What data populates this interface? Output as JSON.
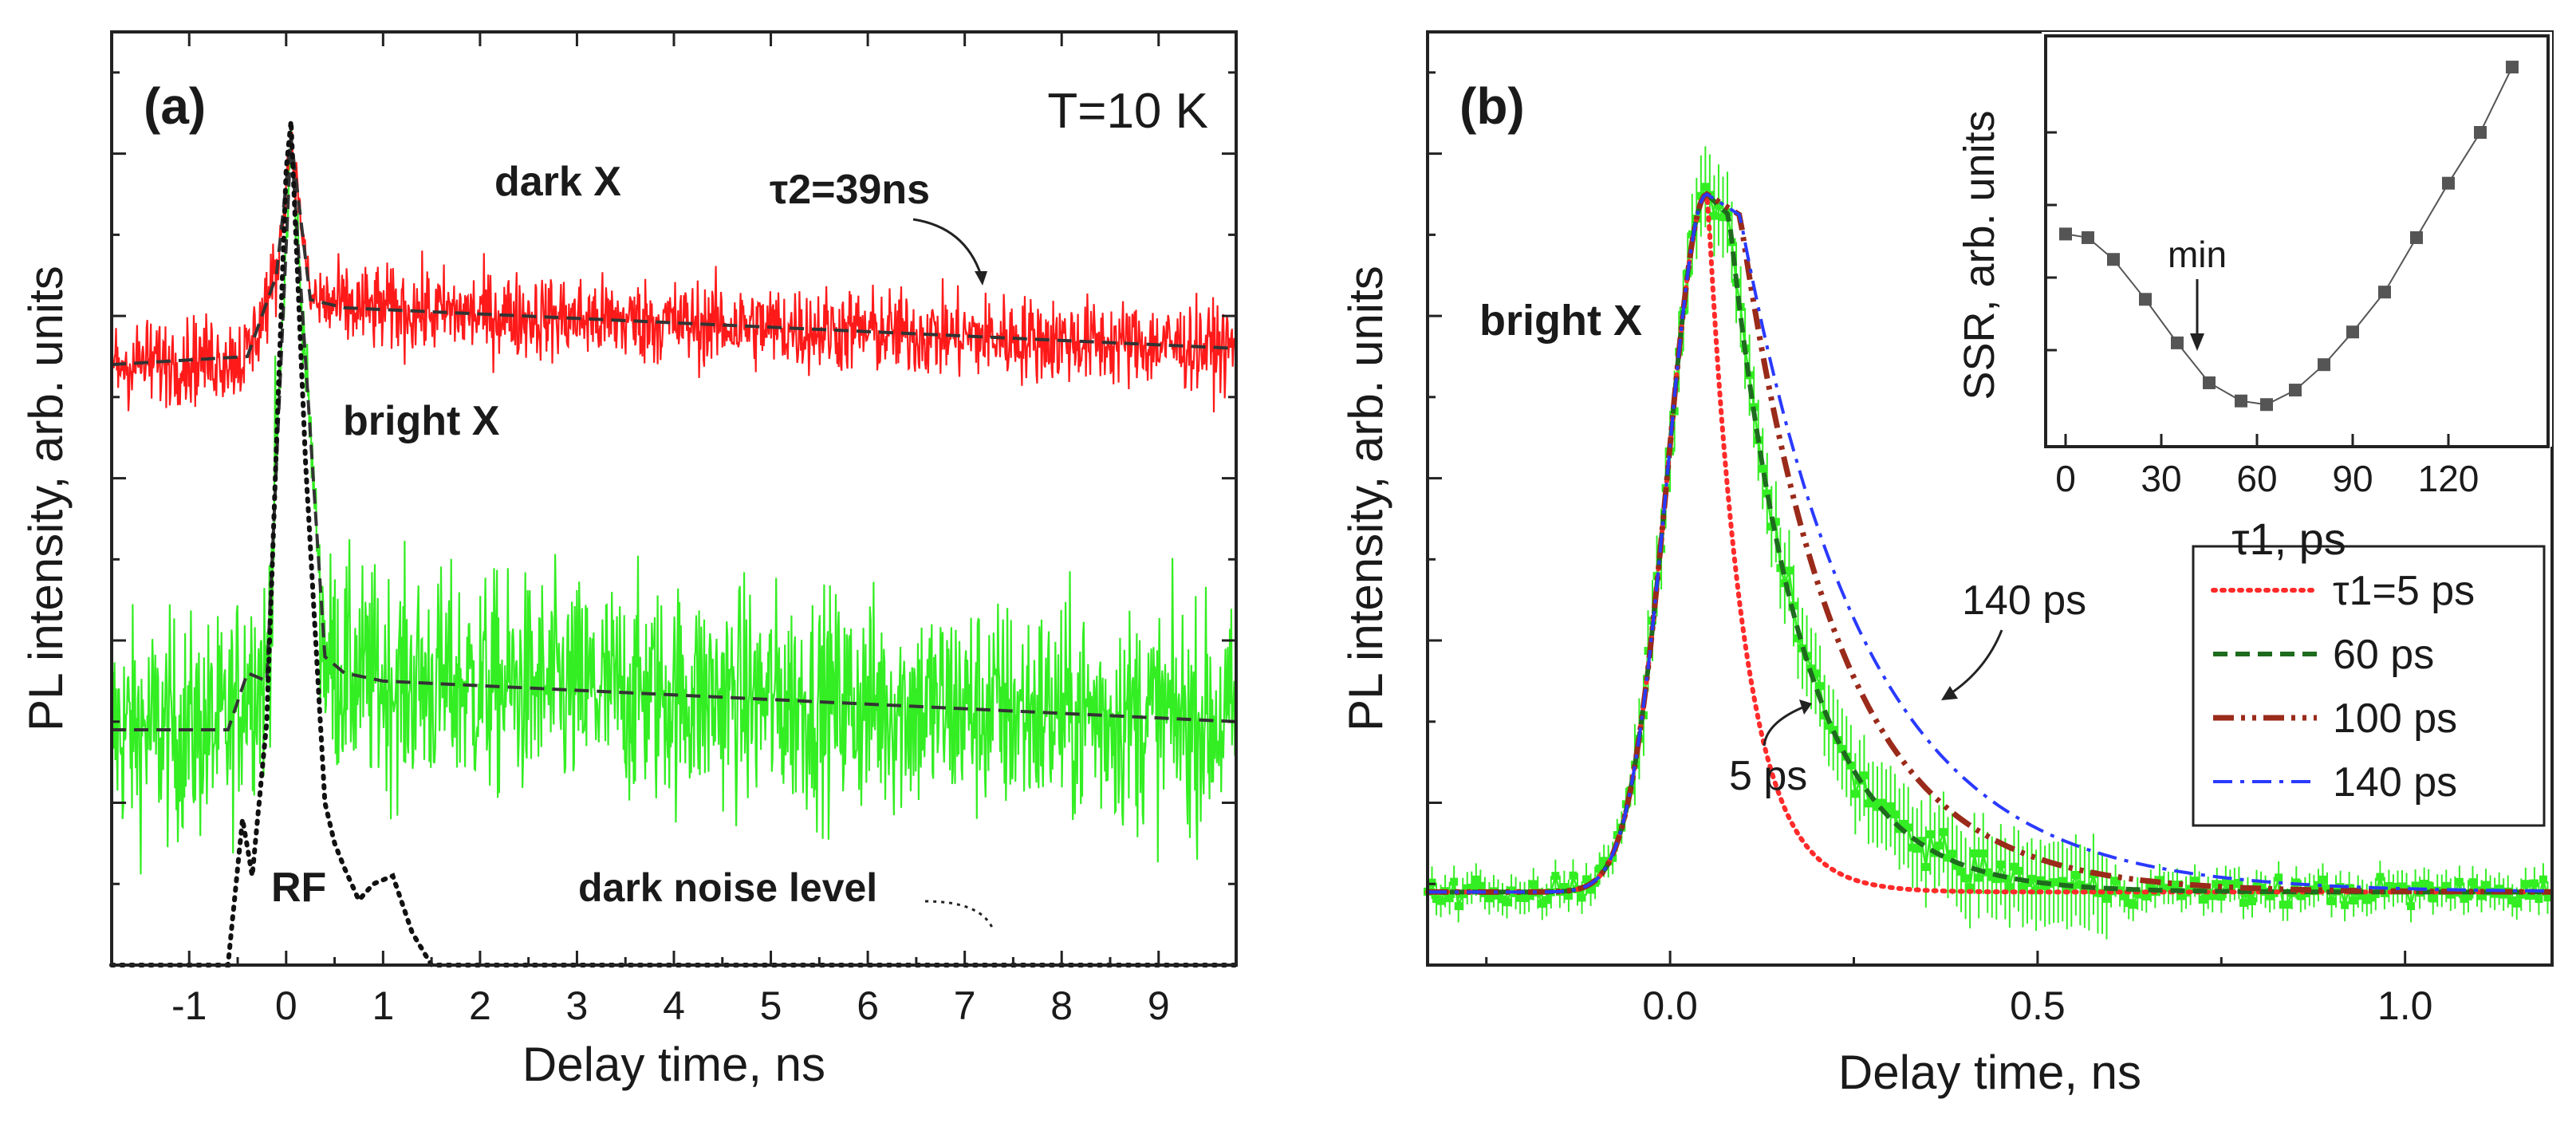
{
  "chart_data": [
    {
      "panel": "(a)",
      "type": "line",
      "annotation_temperature": "T=10 K",
      "xlabel": "Delay time, ns",
      "ylabel": "PL intensity, arb. units",
      "xlim": [
        -1.8,
        9.8
      ],
      "ylim": [
        0,
        1.15
      ],
      "x_ticks": [
        "-1",
        "0",
        "1",
        "2",
        "3",
        "4",
        "5",
        "6",
        "7",
        "8",
        "9"
      ],
      "series": [
        {
          "name": "dark X",
          "color": "#ff1a1a",
          "style": "noisy-trace",
          "baseline": 0.74,
          "peak": {
            "x": 0.05,
            "y": 1.03
          },
          "after_peak": 0.82,
          "end": 0.76
        },
        {
          "name": "bright X",
          "color": "#33ee22",
          "style": "noisy-trace",
          "baseline": 0.29,
          "peak": {
            "x": 0.05,
            "y": 1.07
          },
          "shoulder": 0.36,
          "end": 0.29
        },
        {
          "name": "dark X fit",
          "color": "#333333",
          "style": "dashed",
          "x": [
            -1.8,
            -0.4,
            -0.1,
            0.05,
            0.25,
            0.6,
            9.8
          ],
          "y": [
            0.74,
            0.75,
            0.85,
            1.02,
            0.82,
            0.81,
            0.76
          ]
        },
        {
          "name": "bright X fit",
          "color": "#333333",
          "style": "dashed",
          "x": [
            -1.8,
            -0.6,
            -0.4,
            -0.2,
            0.05,
            0.4,
            0.6,
            1.0,
            9.8
          ],
          "y": [
            0.29,
            0.29,
            0.36,
            0.35,
            1.02,
            0.38,
            0.36,
            0.35,
            0.3
          ]
        },
        {
          "name": "RF",
          "color": "#111111",
          "style": "dotted",
          "x": [
            -1.8,
            -0.6,
            -0.45,
            -0.35,
            -0.2,
            0.0,
            0.05,
            0.2,
            0.4,
            0.5,
            0.6,
            0.75,
            0.9,
            1.1,
            1.3,
            1.5,
            9.8
          ],
          "y": [
            0.0,
            0.0,
            0.18,
            0.11,
            0.3,
            0.98,
            1.04,
            0.62,
            0.2,
            0.15,
            0.12,
            0.08,
            0.1,
            0.11,
            0.04,
            0.0,
            0.0
          ]
        }
      ],
      "annotations": [
        "dark X",
        "τ2=39ns",
        "bright X",
        "RF",
        "dark noise level"
      ]
    },
    {
      "panel": "(b)",
      "type": "line",
      "xlabel": "Delay time, ns",
      "ylabel": "PL intensity, arb. units",
      "xlim": [
        -0.33,
        1.2
      ],
      "ylim": [
        0,
        1.15
      ],
      "x_ticks": [
        "0.0",
        "0.5",
        "1.0"
      ],
      "data_label": "bright X",
      "data_color": "#33ee22",
      "data_peak": {
        "x": 0.05,
        "y": 0.95
      },
      "series": [
        {
          "name": "τ1=5 ps",
          "color": "#ff2a2a",
          "style": "dotted",
          "tau_ps": 5
        },
        {
          "name": "60 ps",
          "color": "#1e6b1e",
          "style": "dashed",
          "tau_ps": 60
        },
        {
          "name": "100 ps",
          "color": "#9a2a1a",
          "style": "dash-dot-dot",
          "tau_ps": 100
        },
        {
          "name": "140 ps",
          "color": "#2a3aff",
          "style": "dash-dot",
          "tau_ps": 140
        }
      ],
      "annotations": [
        "140 ps",
        "5 ps"
      ],
      "inset": {
        "type": "scatter",
        "xlabel": "τ1, ps",
        "ylabel": "SSR, arb. units",
        "xlim": [
          0,
          145
        ],
        "ylim": [
          0,
          1
        ],
        "x_ticks": [
          "0",
          "30",
          "60",
          "90",
          "120"
        ],
        "x": [
          0,
          7,
          15,
          25,
          35,
          45,
          55,
          63,
          72,
          81,
          90,
          100,
          110,
          120,
          130,
          140
        ],
        "y": [
          0.52,
          0.51,
          0.45,
          0.34,
          0.22,
          0.11,
          0.06,
          0.05,
          0.09,
          0.16,
          0.25,
          0.36,
          0.51,
          0.66,
          0.8,
          0.98
        ],
        "min_label": "min"
      }
    }
  ]
}
